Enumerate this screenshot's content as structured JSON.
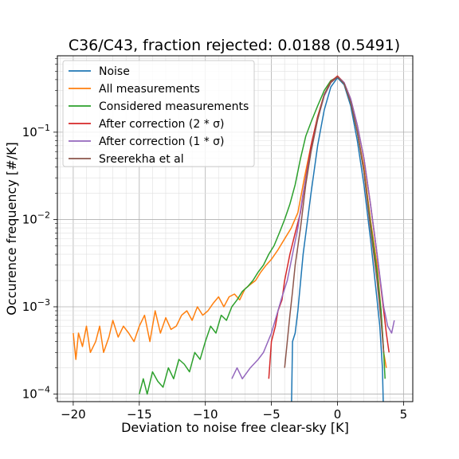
{
  "chart_data": {
    "type": "line",
    "title": "C36/C43, fraction rejected: 0.0188 (0.5491)",
    "xlabel": "Deviation to noise free clear-sky [K]",
    "ylabel": "Occurence frequency [#/K]",
    "xlim": [
      -21.2,
      5.7
    ],
    "ylim": [
      8.2e-05,
      0.75
    ],
    "yscale": "log",
    "grid": true,
    "legend_position": "upper-left",
    "x_ticks": [
      -20,
      -15,
      -10,
      -5,
      0,
      5
    ],
    "x_tick_labels": [
      "−20",
      "−15",
      "−10",
      "−5",
      "0",
      "5"
    ],
    "y_ticks": [
      {
        "value": 0.0001,
        "base": "10",
        "exp": "−4"
      },
      {
        "value": 0.001,
        "base": "10",
        "exp": "−3"
      },
      {
        "value": 0.01,
        "base": "10",
        "exp": "−2"
      },
      {
        "value": 0.1,
        "base": "10",
        "exp": "−1"
      }
    ],
    "series": [
      {
        "name": "Noise",
        "color": "#1f77b4",
        "points": [
          [
            -3.5,
            5e-05
          ],
          [
            -3.4,
            0.0004
          ],
          [
            -3.2,
            0.0005
          ],
          [
            -3.0,
            0.0009
          ],
          [
            -2.6,
            0.004
          ],
          [
            -2.0,
            0.02
          ],
          [
            -1.5,
            0.07
          ],
          [
            -1.0,
            0.18
          ],
          [
            -0.5,
            0.33
          ],
          [
            0.0,
            0.42
          ],
          [
            0.5,
            0.35
          ],
          [
            1.0,
            0.2
          ],
          [
            1.5,
            0.08
          ],
          [
            2.0,
            0.025
          ],
          [
            2.5,
            0.006
          ],
          [
            3.0,
            0.0012
          ],
          [
            3.2,
            0.0006
          ],
          [
            3.4,
            0.0002
          ],
          [
            3.5,
            5e-05
          ]
        ]
      },
      {
        "name": "All measurements",
        "color": "#ff7f0e",
        "points": [
          [
            -20.0,
            0.0005
          ],
          [
            -19.8,
            0.00025
          ],
          [
            -19.6,
            0.0005
          ],
          [
            -19.3,
            0.00035
          ],
          [
            -19.0,
            0.0006
          ],
          [
            -18.7,
            0.0003
          ],
          [
            -18.3,
            0.0004
          ],
          [
            -18.0,
            0.0006
          ],
          [
            -17.7,
            0.0003
          ],
          [
            -17.3,
            0.00045
          ],
          [
            -17.0,
            0.0007
          ],
          [
            -16.6,
            0.00045
          ],
          [
            -16.2,
            0.0006
          ],
          [
            -15.8,
            0.0005
          ],
          [
            -15.4,
            0.0004
          ],
          [
            -15.0,
            0.0006
          ],
          [
            -14.6,
            0.0008
          ],
          [
            -14.2,
            0.0004
          ],
          [
            -13.8,
            0.0009
          ],
          [
            -13.4,
            0.0005
          ],
          [
            -13.0,
            0.00075
          ],
          [
            -12.6,
            0.00055
          ],
          [
            -12.2,
            0.0006
          ],
          [
            -11.8,
            0.0008
          ],
          [
            -11.4,
            0.0009
          ],
          [
            -11.0,
            0.0007
          ],
          [
            -10.6,
            0.001
          ],
          [
            -10.2,
            0.0008
          ],
          [
            -9.8,
            0.0009
          ],
          [
            -9.4,
            0.0011
          ],
          [
            -9.0,
            0.0013
          ],
          [
            -8.6,
            0.001
          ],
          [
            -8.2,
            0.0013
          ],
          [
            -7.8,
            0.0014
          ],
          [
            -7.4,
            0.0012
          ],
          [
            -7.0,
            0.0016
          ],
          [
            -6.6,
            0.0018
          ],
          [
            -6.2,
            0.002
          ],
          [
            -5.8,
            0.0025
          ],
          [
            -5.4,
            0.003
          ],
          [
            -5.0,
            0.0035
          ],
          [
            -4.5,
            0.0045
          ],
          [
            -4.0,
            0.006
          ],
          [
            -3.5,
            0.008
          ],
          [
            -3.0,
            0.012
          ],
          [
            -2.5,
            0.03
          ],
          [
            -2.0,
            0.07
          ],
          [
            -1.5,
            0.15
          ],
          [
            -1.0,
            0.27
          ],
          [
            -0.5,
            0.38
          ],
          [
            0.0,
            0.44
          ],
          [
            0.5,
            0.36
          ],
          [
            1.0,
            0.22
          ],
          [
            1.5,
            0.1
          ],
          [
            2.0,
            0.04
          ],
          [
            2.5,
            0.01
          ],
          [
            3.0,
            0.003
          ],
          [
            3.3,
            0.0009
          ],
          [
            3.5,
            0.0003
          ],
          [
            3.7,
            0.0002
          ]
        ]
      },
      {
        "name": "Considered measurements",
        "color": "#2ca02c",
        "points": [
          [
            -15.0,
            0.0001
          ],
          [
            -14.7,
            0.00015
          ],
          [
            -14.4,
            0.0001
          ],
          [
            -14.0,
            0.00018
          ],
          [
            -13.6,
            0.00014
          ],
          [
            -13.2,
            0.00012
          ],
          [
            -12.8,
            0.0002
          ],
          [
            -12.4,
            0.00015
          ],
          [
            -12.0,
            0.00025
          ],
          [
            -11.6,
            0.00022
          ],
          [
            -11.2,
            0.00018
          ],
          [
            -10.8,
            0.0003
          ],
          [
            -10.4,
            0.00025
          ],
          [
            -10.0,
            0.0004
          ],
          [
            -9.6,
            0.0006
          ],
          [
            -9.2,
            0.0005
          ],
          [
            -8.8,
            0.0008
          ],
          [
            -8.4,
            0.0007
          ],
          [
            -8.0,
            0.001
          ],
          [
            -7.6,
            0.0012
          ],
          [
            -7.2,
            0.0015
          ],
          [
            -6.8,
            0.0017
          ],
          [
            -6.4,
            0.002
          ],
          [
            -6.0,
            0.0025
          ],
          [
            -5.6,
            0.003
          ],
          [
            -5.2,
            0.004
          ],
          [
            -4.8,
            0.005
          ],
          [
            -4.4,
            0.007
          ],
          [
            -4.0,
            0.01
          ],
          [
            -3.6,
            0.015
          ],
          [
            -3.2,
            0.025
          ],
          [
            -2.8,
            0.05
          ],
          [
            -2.4,
            0.09
          ],
          [
            -2.0,
            0.13
          ],
          [
            -1.5,
            0.2
          ],
          [
            -1.0,
            0.3
          ],
          [
            -0.5,
            0.39
          ],
          [
            0.0,
            0.43
          ],
          [
            0.5,
            0.36
          ],
          [
            1.0,
            0.22
          ],
          [
            1.5,
            0.1
          ],
          [
            2.0,
            0.035
          ],
          [
            2.5,
            0.009
          ],
          [
            3.0,
            0.0025
          ],
          [
            3.3,
            0.0009
          ],
          [
            3.5,
            0.0003
          ],
          [
            3.6,
            0.00015
          ]
        ]
      },
      {
        "name": "After correction (2 * σ)",
        "color": "#d62728",
        "points": [
          [
            -5.2,
            0.00015
          ],
          [
            -5.0,
            0.0004
          ],
          [
            -4.7,
            0.0006
          ],
          [
            -4.5,
            0.0009
          ],
          [
            -4.2,
            0.0012
          ],
          [
            -4.0,
            0.002
          ],
          [
            -3.6,
            0.004
          ],
          [
            -3.2,
            0.007
          ],
          [
            -2.8,
            0.012
          ],
          [
            -2.4,
            0.03
          ],
          [
            -2.0,
            0.07
          ],
          [
            -1.5,
            0.15
          ],
          [
            -1.0,
            0.27
          ],
          [
            -0.5,
            0.38
          ],
          [
            0.0,
            0.44
          ],
          [
            0.5,
            0.37
          ],
          [
            1.0,
            0.24
          ],
          [
            1.5,
            0.12
          ],
          [
            2.0,
            0.05
          ],
          [
            2.5,
            0.015
          ],
          [
            3.0,
            0.004
          ],
          [
            3.4,
            0.0012
          ],
          [
            3.7,
            0.0005
          ],
          [
            3.9,
            0.0003
          ]
        ]
      },
      {
        "name": "After correction (1 * σ)",
        "color": "#9467bd",
        "points": [
          [
            -8.0,
            0.00015
          ],
          [
            -7.6,
            0.0002
          ],
          [
            -7.2,
            0.00015
          ],
          [
            -6.6,
            0.0002
          ],
          [
            -6.0,
            0.00025
          ],
          [
            -5.6,
            0.0003
          ],
          [
            -5.0,
            0.0005
          ],
          [
            -4.6,
            0.0008
          ],
          [
            -4.2,
            0.0013
          ],
          [
            -3.8,
            0.002
          ],
          [
            -3.4,
            0.004
          ],
          [
            -3.0,
            0.008
          ],
          [
            -2.6,
            0.02
          ],
          [
            -2.0,
            0.06
          ],
          [
            -1.5,
            0.14
          ],
          [
            -1.0,
            0.26
          ],
          [
            -0.5,
            0.37
          ],
          [
            0.0,
            0.43
          ],
          [
            0.5,
            0.37
          ],
          [
            1.0,
            0.24
          ],
          [
            1.5,
            0.12
          ],
          [
            2.0,
            0.05
          ],
          [
            2.5,
            0.015
          ],
          [
            3.0,
            0.004
          ],
          [
            3.5,
            0.001
          ],
          [
            3.8,
            0.0006
          ],
          [
            4.1,
            0.0005
          ],
          [
            4.3,
            0.0007
          ]
        ]
      },
      {
        "name": "Sreerekha et al",
        "color": "#8c564b",
        "points": [
          [
            -4.0,
            0.0002
          ],
          [
            -3.8,
            0.0004
          ],
          [
            -3.6,
            0.0008
          ],
          [
            -3.4,
            0.0015
          ],
          [
            -3.2,
            0.003
          ],
          [
            -2.8,
            0.008
          ],
          [
            -2.4,
            0.025
          ],
          [
            -2.0,
            0.06
          ],
          [
            -1.5,
            0.14
          ],
          [
            -1.0,
            0.27
          ],
          [
            -0.5,
            0.37
          ],
          [
            0.0,
            0.43
          ],
          [
            0.5,
            0.36
          ],
          [
            1.0,
            0.22
          ],
          [
            1.5,
            0.1
          ],
          [
            2.0,
            0.035
          ],
          [
            2.5,
            0.008
          ],
          [
            3.0,
            0.002
          ],
          [
            3.3,
            0.0007
          ],
          [
            3.5,
            0.0003
          ]
        ]
      }
    ]
  }
}
